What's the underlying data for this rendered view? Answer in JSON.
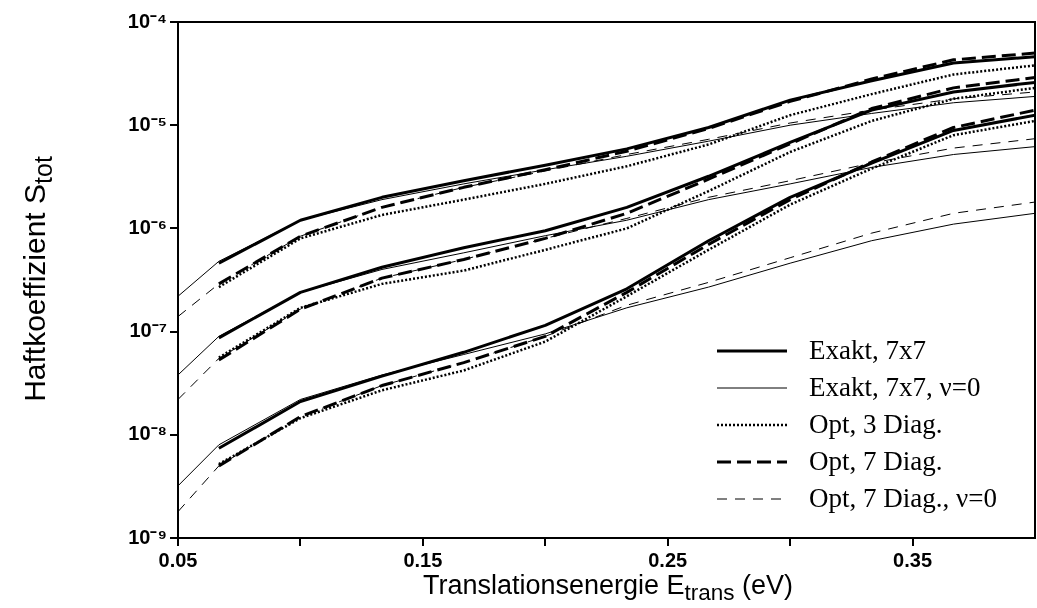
{
  "chart_data": {
    "type": "line",
    "xlabel": "Translationsenergie E$_{trans}$ (eV)",
    "ylabel": "Haftkoeffizient S$_{tot}$",
    "x": [
      0.05,
      0.0667,
      0.1,
      0.1333,
      0.1667,
      0.2,
      0.2333,
      0.2667,
      0.3,
      0.3333,
      0.3667,
      0.4
    ],
    "xlim": [
      0.05,
      0.4
    ],
    "xticks": [
      0.05,
      {
        "value": 0.1,
        "label": null
      },
      0.15,
      {
        "value": 0.2,
        "label": null
      },
      0.25,
      {
        "value": 0.3,
        "label": null
      },
      0.35
    ],
    "ylim": [
      1e-09,
      0.0001
    ],
    "log": true,
    "yticks": [
      {
        "value": 1e-09,
        "label": "10⁻⁹"
      },
      {
        "value": 1e-08,
        "label": "10⁻⁸"
      },
      {
        "value": 1e-07,
        "label": "10⁻⁷"
      },
      {
        "value": 1e-06,
        "label": "10⁻⁶"
      },
      {
        "value": 1e-05,
        "label": "10⁻⁵"
      },
      {
        "value": 0.0001,
        "label": "10⁻⁴"
      }
    ],
    "grid": false,
    "legend": "bottom right",
    "marker": "none",
    "series": [
      {
        "name": "Exakt, 7x7",
        "color": "#000000",
        "line_style": "solid",
        "values": [
          null,
          4.6e-07,
          1.2e-06,
          2e-06,
          2.9e-06,
          4.1e-06,
          5.9e-06,
          9.5e-06,
          1.75e-05,
          2.7e-05,
          4e-05,
          4.6e-05
        ]
      },
      {
        "name": "Exakt, 7x7, ν=0",
        "color": "#000000",
        "line_style": "solid",
        "values": [
          2.2e-07,
          4.8e-07,
          1.2e-06,
          1.9e-06,
          2.7e-06,
          3.7e-06,
          5e-06,
          7e-06,
          1e-05,
          1.3e-05,
          1.65e-05,
          1.9e-05
        ]
      },
      {
        "name": "Opt, 3 Diag.",
        "color": "#000000",
        "line_style": "dotted",
        "values": [
          null,
          2.7e-07,
          8e-07,
          1.35e-06,
          1.9e-06,
          2.7e-06,
          4e-06,
          6.5e-06,
          1.25e-05,
          2e-05,
          3.1e-05,
          3.8e-05
        ]
      },
      {
        "name": "Opt, 7 Diag.",
        "color": "#000000",
        "line_style": "dashed",
        "values": [
          null,
          2.9e-07,
          8.4e-07,
          1.6e-06,
          2.5e-06,
          3.7e-06,
          5.6e-06,
          9.3e-06,
          1.7e-05,
          2.8e-05,
          4.3e-05,
          5e-05
        ]
      },
      {
        "name": "Opt, 7 Diag., ν=0",
        "color": "#000000",
        "line_style": "dashed",
        "values": [
          1.4e-07,
          2.9e-07,
          8.4e-07,
          1.6e-06,
          2.5e-06,
          3.6e-06,
          5.2e-06,
          7.3e-06,
          1.05e-05,
          1.4e-05,
          1.8e-05,
          2.1e-05
        ]
      },
      {
        "color": "#000000",
        "line_style": "solid",
        "values": [
          null,
          8.7e-08,
          2.4e-07,
          4.2e-07,
          6.5e-07,
          9.5e-07,
          1.6e-06,
          3.2e-06,
          6.8e-06,
          1.4e-05,
          2.1e-05,
          2.6e-05
        ]
      },
      {
        "color": "#000000",
        "line_style": "solid",
        "values": [
          3.8e-08,
          9e-08,
          2.4e-07,
          4e-07,
          5.8e-07,
          8.5e-07,
          1.2e-06,
          1.9e-06,
          2.7e-06,
          3.9e-06,
          5.2e-06,
          6.2e-06
        ]
      },
      {
        "color": "#000000",
        "line_style": "dotted",
        "values": [
          null,
          5.6e-08,
          1.7e-07,
          2.9e-07,
          3.9e-07,
          6.2e-07,
          1e-06,
          2.3e-06,
          5.5e-06,
          1.1e-05,
          1.8e-05,
          2.3e-05
        ]
      },
      {
        "color": "#000000",
        "line_style": "dashed",
        "values": [
          null,
          5.3e-08,
          1.65e-07,
          3.3e-07,
          5e-07,
          8e-07,
          1.4e-06,
          3e-06,
          6.6e-06,
          1.45e-05,
          2.3e-05,
          2.9e-05
        ]
      },
      {
        "color": "#000000",
        "line_style": "dashed",
        "values": [
          2.2e-08,
          5.5e-08,
          1.65e-07,
          3.3e-07,
          5e-07,
          8e-07,
          1.25e-06,
          2e-06,
          2.9e-06,
          4.3e-06,
          6e-06,
          7.4e-06
        ]
      },
      {
        "color": "#000000",
        "line_style": "solid",
        "values": [
          null,
          7.4e-09,
          2.1e-08,
          3.7e-08,
          6.3e-08,
          1.15e-07,
          2.6e-07,
          7.6e-07,
          2e-06,
          4.3e-06,
          8.9e-06,
          1.25e-05
        ]
      },
      {
        "color": "#000000",
        "line_style": "solid",
        "values": [
          3.2e-09,
          8e-09,
          2.2e-08,
          3.8e-08,
          6e-08,
          9.5e-08,
          1.7e-07,
          2.7e-07,
          4.6e-07,
          7.6e-07,
          1.1e-06,
          1.4e-06
        ]
      },
      {
        "color": "#000000",
        "line_style": "dotted",
        "values": [
          null,
          5.2e-09,
          1.45e-08,
          2.7e-08,
          4.2e-08,
          8e-08,
          2.2e-07,
          6.2e-07,
          1.7e-06,
          3.8e-06,
          8e-06,
          1.1e-05
        ]
      },
      {
        "color": "#000000",
        "line_style": "dashed",
        "values": [
          null,
          5e-09,
          1.5e-08,
          3e-08,
          5e-08,
          9e-08,
          2.4e-07,
          7e-07,
          1.9e-06,
          4.4e-06,
          9.5e-06,
          1.4e-05
        ]
      },
      {
        "color": "#000000",
        "line_style": "dashed",
        "values": [
          1.8e-09,
          5e-09,
          1.5e-08,
          3e-08,
          5e-08,
          9e-08,
          1.8e-07,
          3e-07,
          5.2e-07,
          9e-07,
          1.4e-06,
          1.8e-06
        ]
      }
    ]
  }
}
